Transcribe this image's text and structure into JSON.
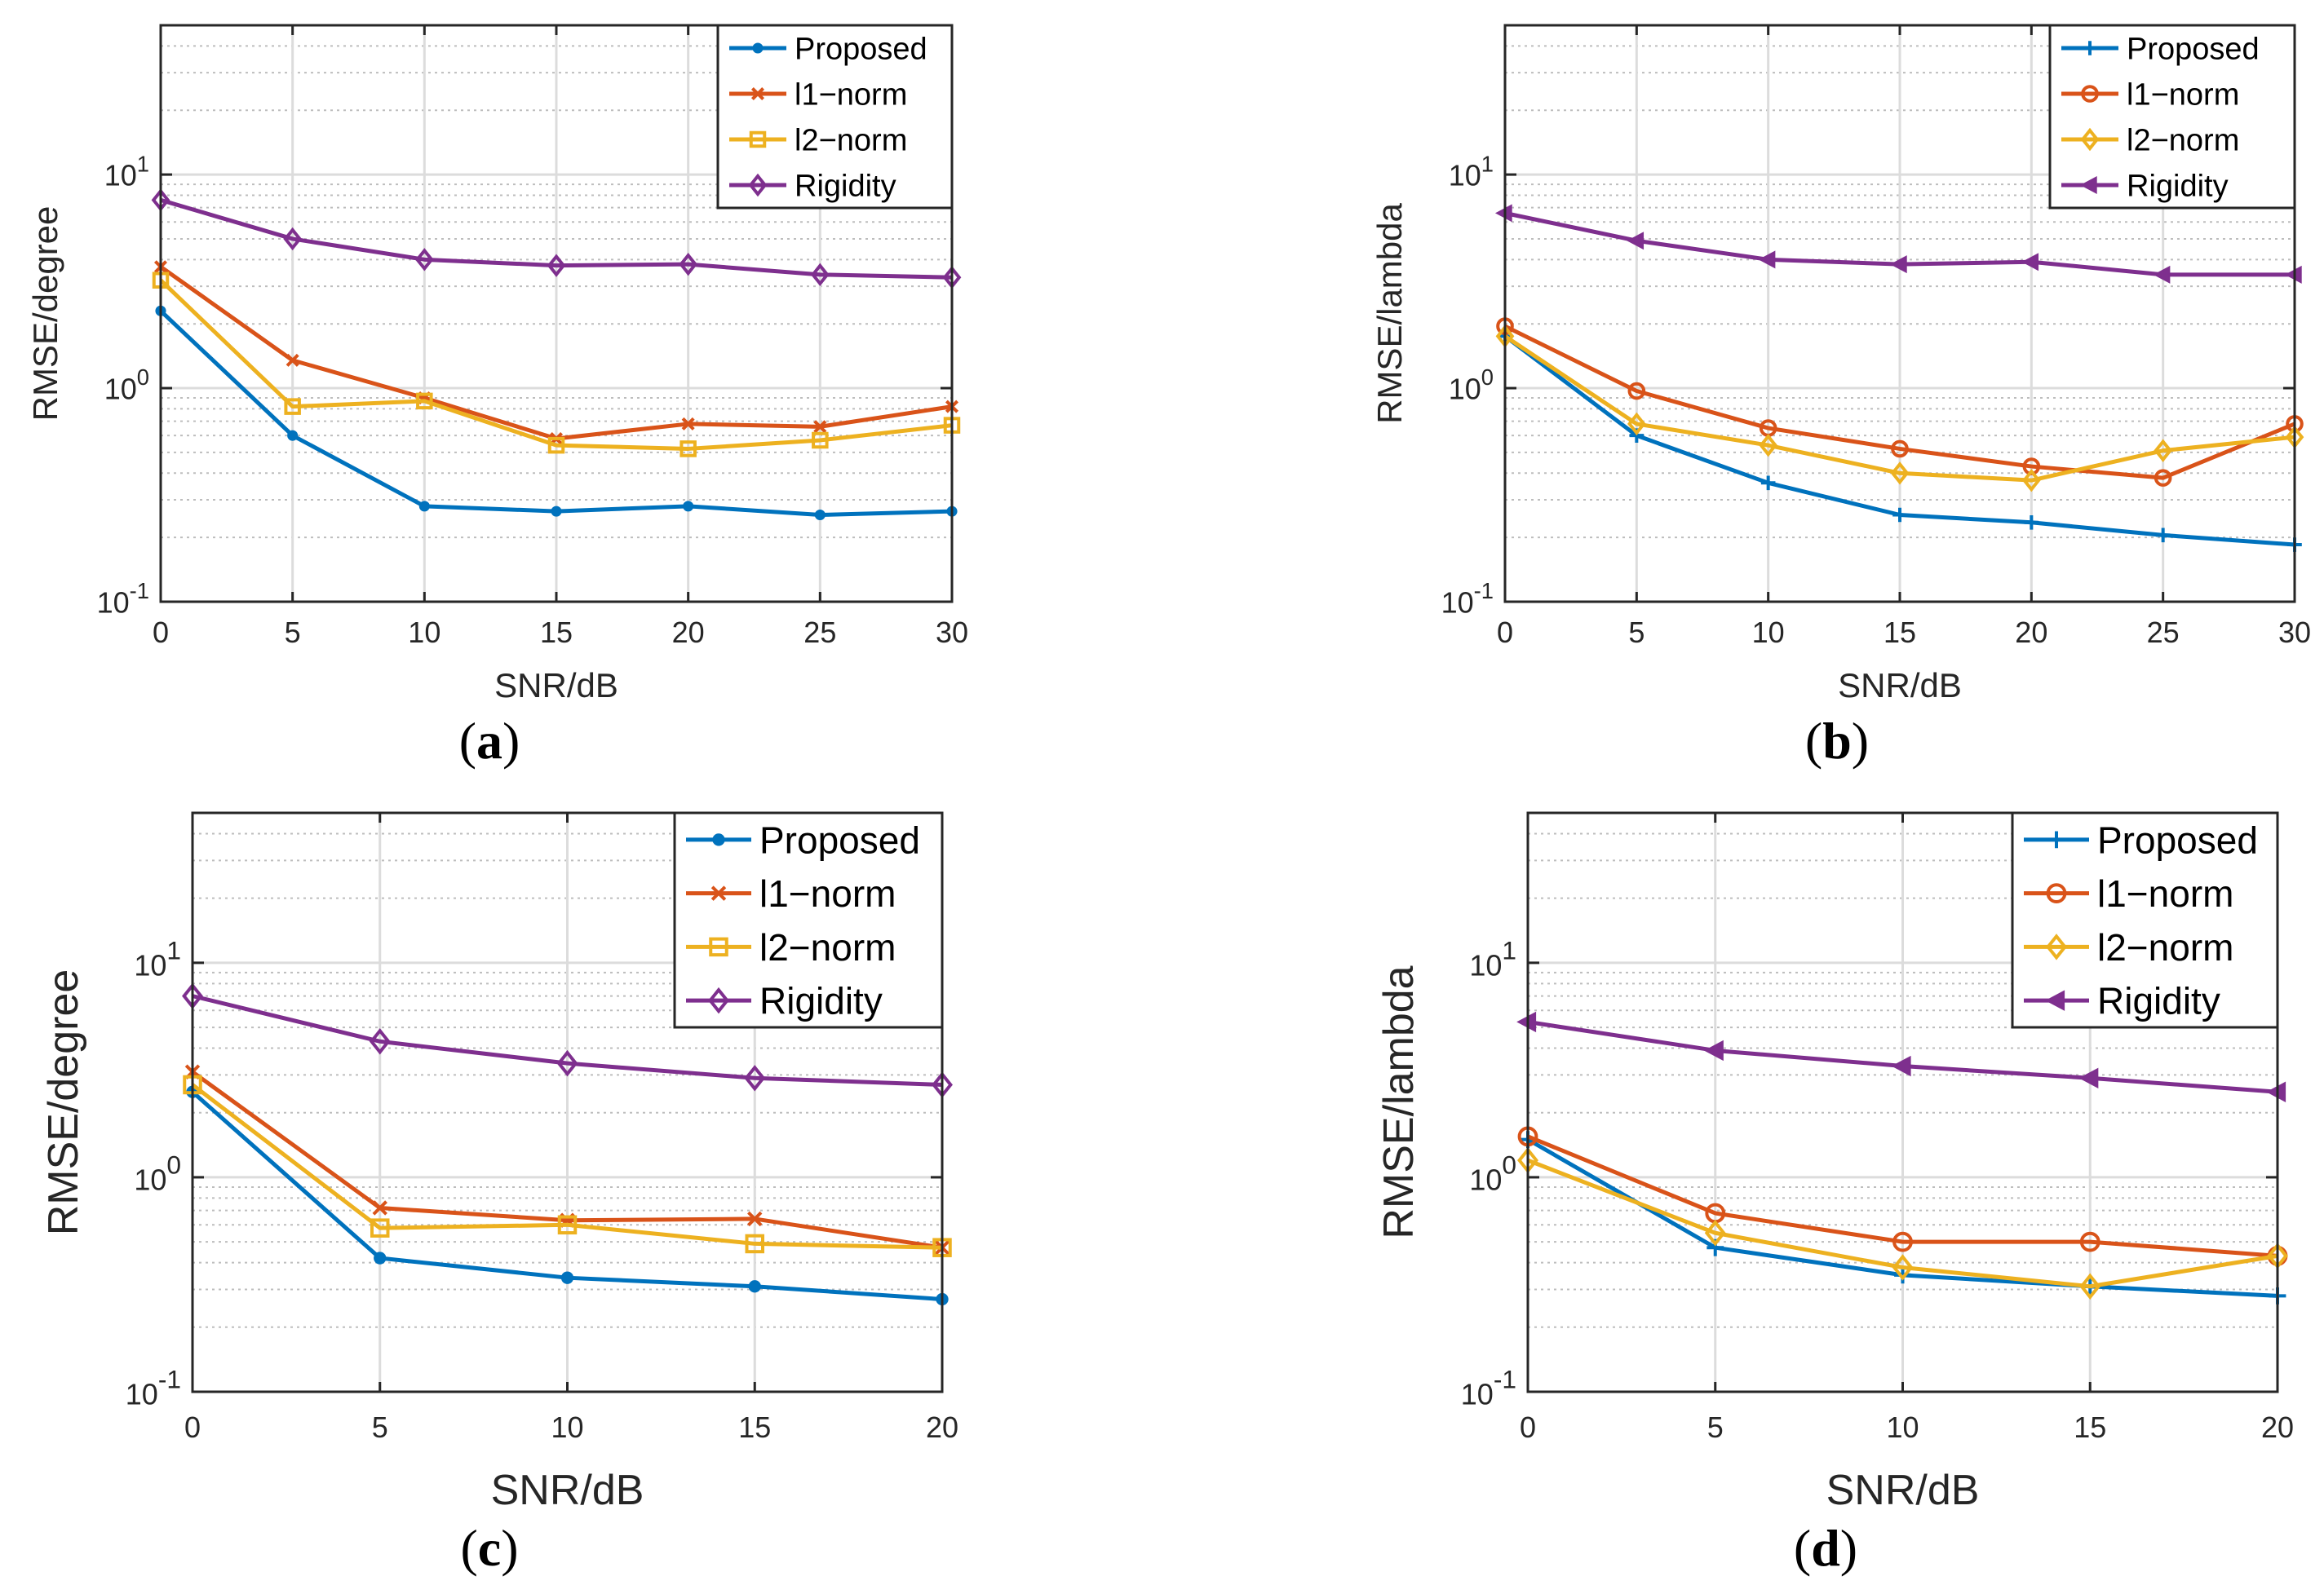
{
  "figure": {
    "panels": [
      {
        "caption": "(a)",
        "chart_data": {
          "type": "line",
          "yscale": "log",
          "x": [
            0,
            5,
            10,
            15,
            20,
            25,
            30
          ],
          "xticks": [
            "0",
            "5",
            "10",
            "15",
            "20",
            "25",
            "30"
          ],
          "xlim": [
            0,
            30
          ],
          "ylim": [
            0.1,
            50
          ],
          "yticks": [
            {
              "base": "10",
              "exp": "-1"
            },
            {
              "base": "10",
              "exp": "0"
            },
            {
              "base": "10",
              "exp": "1"
            }
          ],
          "xlabel": "SNR/dB",
          "ylabel": "RMSE/degree",
          "grid": true,
          "legend_position": "top-right",
          "series": [
            {
              "name": "Proposed",
              "color": "#0072BD",
              "marker": "dot",
              "values": [
                2.3,
                0.6,
                0.28,
                0.265,
                0.28,
                0.255,
                0.265
              ]
            },
            {
              "name": "l1−norm",
              "color": "#D95319",
              "marker": "x",
              "values": [
                3.7,
                1.35,
                0.9,
                0.58,
                0.68,
                0.66,
                0.82
              ]
            },
            {
              "name": "l2−norm",
              "color": "#EDB120",
              "marker": "square",
              "values": [
                3.2,
                0.82,
                0.87,
                0.54,
                0.52,
                0.57,
                0.67
              ]
            },
            {
              "name": "Rigidity",
              "color": "#7E2F8E",
              "marker": "diamond",
              "values": [
                7.6,
                5.0,
                4.0,
                3.75,
                3.8,
                3.4,
                3.3
              ]
            }
          ]
        }
      },
      {
        "caption": "(b)",
        "chart_data": {
          "type": "line",
          "yscale": "log",
          "x": [
            0,
            5,
            10,
            15,
            20,
            25,
            30
          ],
          "xticks": [
            "0",
            "5",
            "10",
            "15",
            "20",
            "25",
            "30"
          ],
          "xlim": [
            0,
            30
          ],
          "ylim": [
            0.1,
            50
          ],
          "yticks": [
            {
              "base": "10",
              "exp": "-1"
            },
            {
              "base": "10",
              "exp": "0"
            },
            {
              "base": "10",
              "exp": "1"
            }
          ],
          "xlabel": "SNR/dB",
          "ylabel": "RMSE/lambda",
          "grid": true,
          "legend_position": "top-right",
          "series": [
            {
              "name": "Proposed",
              "color": "#0072BD",
              "marker": "plus",
              "values": [
                1.75,
                0.6,
                0.36,
                0.255,
                0.235,
                0.205,
                0.185
              ]
            },
            {
              "name": "l1−norm",
              "color": "#D95319",
              "marker": "circle",
              "values": [
                1.95,
                0.97,
                0.65,
                0.52,
                0.43,
                0.38,
                0.68
              ]
            },
            {
              "name": "l2−norm",
              "color": "#EDB120",
              "marker": "diamond",
              "values": [
                1.75,
                0.68,
                0.54,
                0.4,
                0.37,
                0.51,
                0.59
              ]
            },
            {
              "name": "Rigidity",
              "color": "#7E2F8E",
              "marker": "triangle-left",
              "values": [
                6.6,
                4.9,
                4.0,
                3.8,
                3.9,
                3.4,
                3.4
              ]
            }
          ]
        }
      },
      {
        "caption": "(c)",
        "chart_data": {
          "type": "line",
          "yscale": "log",
          "x": [
            0,
            5,
            10,
            15,
            20
          ],
          "xticks": [
            "0",
            "5",
            "10",
            "15",
            "20"
          ],
          "xlim": [
            0,
            20
          ],
          "ylim": [
            0.1,
            50
          ],
          "yticks": [
            {
              "base": "10",
              "exp": "-1"
            },
            {
              "base": "10",
              "exp": "0"
            },
            {
              "base": "10",
              "exp": "1"
            }
          ],
          "xlabel": "SNR/dB",
          "ylabel": "RMSE/degree",
          "grid": true,
          "legend_position": "top-right",
          "series": [
            {
              "name": "Proposed",
              "color": "#0072BD",
              "marker": "dot",
              "values": [
                2.5,
                0.42,
                0.34,
                0.31,
                0.27
              ]
            },
            {
              "name": "l1−norm",
              "color": "#D95319",
              "marker": "x",
              "values": [
                3.1,
                0.72,
                0.63,
                0.64,
                0.47
              ]
            },
            {
              "name": "l2−norm",
              "color": "#EDB120",
              "marker": "square",
              "values": [
                2.7,
                0.58,
                0.6,
                0.49,
                0.47
              ]
            },
            {
              "name": "Rigidity",
              "color": "#7E2F8E",
              "marker": "diamond",
              "values": [
                7.0,
                4.3,
                3.4,
                2.9,
                2.7
              ]
            }
          ]
        }
      },
      {
        "caption": "(d)",
        "chart_data": {
          "type": "line",
          "yscale": "log",
          "x": [
            0,
            5,
            10,
            15,
            20
          ],
          "xticks": [
            "0",
            "5",
            "10",
            "15",
            "20"
          ],
          "xlim": [
            0,
            20
          ],
          "ylim": [
            0.1,
            50
          ],
          "yticks": [
            {
              "base": "10",
              "exp": "-1"
            },
            {
              "base": "10",
              "exp": "0"
            },
            {
              "base": "10",
              "exp": "1"
            }
          ],
          "xlabel": "SNR/dB",
          "ylabel": "RMSE/lambda",
          "grid": true,
          "legend_position": "top-right",
          "series": [
            {
              "name": "Proposed",
              "color": "#0072BD",
              "marker": "plus",
              "values": [
                1.5,
                0.47,
                0.35,
                0.31,
                0.28
              ]
            },
            {
              "name": "l1−norm",
              "color": "#D95319",
              "marker": "circle",
              "values": [
                1.55,
                0.68,
                0.5,
                0.5,
                0.43
              ]
            },
            {
              "name": "l2−norm",
              "color": "#EDB120",
              "marker": "diamond",
              "values": [
                1.2,
                0.55,
                0.38,
                0.31,
                0.43
              ]
            },
            {
              "name": "Rigidity",
              "color": "#7E2F8E",
              "marker": "triangle-left",
              "values": [
                5.3,
                3.9,
                3.3,
                2.9,
                2.5
              ]
            }
          ]
        }
      }
    ]
  }
}
